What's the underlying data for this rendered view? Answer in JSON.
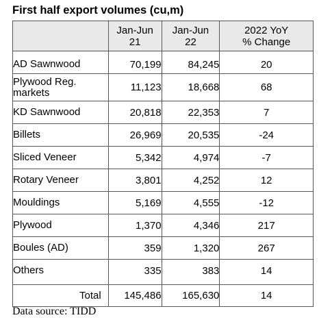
{
  "title": "First half export volumes (cu,m)",
  "headers": {
    "col1": "",
    "col2": [
      "Jan-Jun",
      "21"
    ],
    "col3": [
      "Jan-Jun",
      "22"
    ],
    "col4": [
      "2022 YoY",
      "% Change"
    ]
  },
  "rows": [
    {
      "product": [
        "AD Sawnwood"
      ],
      "jan_jun_21": "70,199",
      "jan_jun_22": "84,245",
      "change": "20"
    },
    {
      "product": [
        "Plywood Reg.",
        "markets"
      ],
      "jan_jun_21": "11,123",
      "jan_jun_22": "18,668",
      "change": "68"
    },
    {
      "product": [
        "KD Sawnwood"
      ],
      "jan_jun_21": "20,818",
      "jan_jun_22": "22,353",
      "change": "7"
    },
    {
      "product": [
        "Billets"
      ],
      "jan_jun_21": "26,969",
      "jan_jun_22": "20,535",
      "change": "-24"
    },
    {
      "product": [
        "Sliced Veneer"
      ],
      "jan_jun_21": "5,342",
      "jan_jun_22": "4,974",
      "change": "-7"
    },
    {
      "product": [
        "Rotary Veneer"
      ],
      "jan_jun_21": "3,801",
      "jan_jun_22": "4,252",
      "change": "12"
    },
    {
      "product": [
        "Mouldings"
      ],
      "jan_jun_21": "5,169",
      "jan_jun_22": "4,555",
      "change": "-12"
    },
    {
      "product": [
        "Plywood"
      ],
      "jan_jun_21": "1,370",
      "jan_jun_22": "4,346",
      "change": "217"
    },
    {
      "product": [
        "Boules (AD)"
      ],
      "jan_jun_21": "359",
      "jan_jun_22": "1,320",
      "change": "267"
    },
    {
      "product": [
        "Others"
      ],
      "jan_jun_21": "335",
      "jan_jun_22": "383",
      "change": "14"
    }
  ],
  "total": {
    "label": "Total",
    "jan_jun_21": "145,486",
    "jan_jun_22": "165,630",
    "change": "14"
  },
  "source": "Data source: TIDD"
}
